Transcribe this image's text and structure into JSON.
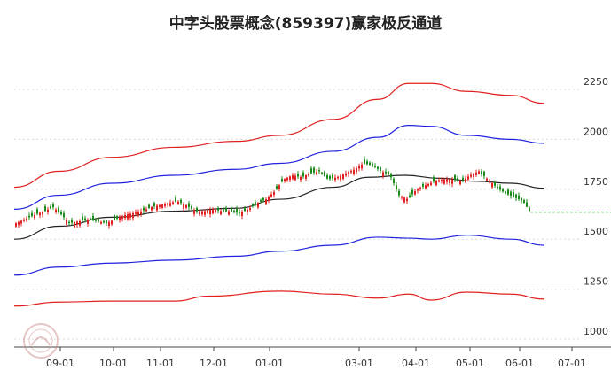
{
  "chart_data": {
    "type": "candlestick_with_channels",
    "title": "中字头股票概念(859397)赢家极反通道",
    "y_ticks": [
      1000,
      1250,
      1500,
      1750,
      2000,
      2250
    ],
    "ylim": [
      1000,
      2350
    ],
    "x_ticks": [
      "09-01",
      "10-01",
      "11-01",
      "12-01",
      "01-01",
      "03-01",
      "04-01",
      "05-01",
      "06-01",
      "07-01"
    ],
    "last_price": 1635,
    "colors": {
      "up": "#e02020",
      "down": "#1a8a1a",
      "outer": "#e02020",
      "inner": "#2222dd",
      "middle": "#222222",
      "last": "#1a9a1a"
    },
    "series": [
      {
        "key": "outer_upper",
        "points": [
          [
            0,
            1760
          ],
          [
            50,
            1840
          ],
          [
            110,
            1910
          ],
          [
            180,
            1960
          ],
          [
            250,
            1990
          ],
          [
            300,
            2020
          ],
          [
            360,
            2100
          ],
          [
            410,
            2200
          ],
          [
            445,
            2280
          ],
          [
            470,
            2280
          ],
          [
            510,
            2240
          ],
          [
            560,
            2220
          ],
          [
            598,
            2180
          ]
        ]
      },
      {
        "key": "inner_upper",
        "points": [
          [
            0,
            1650
          ],
          [
            50,
            1720
          ],
          [
            110,
            1780
          ],
          [
            180,
            1820
          ],
          [
            250,
            1850
          ],
          [
            300,
            1880
          ],
          [
            360,
            1940
          ],
          [
            410,
            2010
          ],
          [
            445,
            2070
          ],
          [
            470,
            2065
          ],
          [
            510,
            2020
          ],
          [
            560,
            2000
          ],
          [
            598,
            1980
          ]
        ]
      },
      {
        "key": "middle",
        "points": [
          [
            0,
            1500
          ],
          [
            50,
            1565
          ],
          [
            110,
            1610
          ],
          [
            180,
            1640
          ],
          [
            250,
            1655
          ],
          [
            300,
            1700
          ],
          [
            360,
            1760
          ],
          [
            400,
            1810
          ],
          [
            440,
            1820
          ],
          [
            480,
            1805
          ],
          [
            520,
            1790
          ],
          [
            560,
            1780
          ],
          [
            598,
            1755
          ]
        ]
      },
      {
        "key": "inner_lower",
        "points": [
          [
            0,
            1320
          ],
          [
            50,
            1360
          ],
          [
            110,
            1380
          ],
          [
            180,
            1395
          ],
          [
            250,
            1415
          ],
          [
            300,
            1440
          ],
          [
            360,
            1470
          ],
          [
            410,
            1510
          ],
          [
            445,
            1505
          ],
          [
            470,
            1500
          ],
          [
            510,
            1520
          ],
          [
            560,
            1500
          ],
          [
            598,
            1470
          ]
        ]
      },
      {
        "key": "outer_lower",
        "points": [
          [
            0,
            1165
          ],
          [
            50,
            1185
          ],
          [
            110,
            1190
          ],
          [
            180,
            1190
          ],
          [
            220,
            1215
          ],
          [
            300,
            1240
          ],
          [
            360,
            1225
          ],
          [
            410,
            1205
          ],
          [
            445,
            1225
          ],
          [
            470,
            1195
          ],
          [
            510,
            1235
          ],
          [
            560,
            1225
          ],
          [
            598,
            1200
          ]
        ]
      }
    ],
    "close_path": [
      [
        18,
        1580
      ],
      [
        28,
        1600
      ],
      [
        38,
        1620
      ],
      [
        50,
        1640
      ],
      [
        60,
        1660
      ],
      [
        70,
        1620
      ],
      [
        78,
        1580
      ],
      [
        90,
        1590
      ],
      [
        100,
        1600
      ],
      [
        110,
        1590
      ],
      [
        120,
        1580
      ],
      [
        130,
        1600
      ],
      [
        140,
        1620
      ],
      [
        150,
        1630
      ],
      [
        160,
        1640
      ],
      [
        170,
        1660
      ],
      [
        180,
        1670
      ],
      [
        190,
        1680
      ],
      [
        200,
        1690
      ],
      [
        210,
        1670
      ],
      [
        220,
        1640
      ],
      [
        230,
        1640
      ],
      [
        240,
        1650
      ],
      [
        250,
        1640
      ],
      [
        260,
        1640
      ],
      [
        270,
        1630
      ],
      [
        280,
        1650
      ],
      [
        290,
        1680
      ],
      [
        300,
        1700
      ],
      [
        310,
        1740
      ],
      [
        320,
        1800
      ],
      [
        330,
        1820
      ],
      [
        340,
        1810
      ],
      [
        350,
        1830
      ],
      [
        360,
        1840
      ],
      [
        370,
        1800
      ],
      [
        380,
        1810
      ],
      [
        390,
        1830
      ],
      [
        400,
        1850
      ],
      [
        410,
        1880
      ],
      [
        420,
        1870
      ],
      [
        430,
        1840
      ],
      [
        440,
        1820
      ],
      [
        450,
        1720
      ],
      [
        460,
        1700
      ],
      [
        470,
        1750
      ],
      [
        480,
        1770
      ],
      [
        490,
        1790
      ],
      [
        500,
        1800
      ],
      [
        510,
        1800
      ],
      [
        520,
        1790
      ],
      [
        530,
        1820
      ],
      [
        540,
        1840
      ],
      [
        550,
        1800
      ],
      [
        560,
        1760
      ],
      [
        570,
        1730
      ],
      [
        580,
        1710
      ],
      [
        590,
        1690
      ],
      [
        598,
        1635
      ]
    ]
  }
}
